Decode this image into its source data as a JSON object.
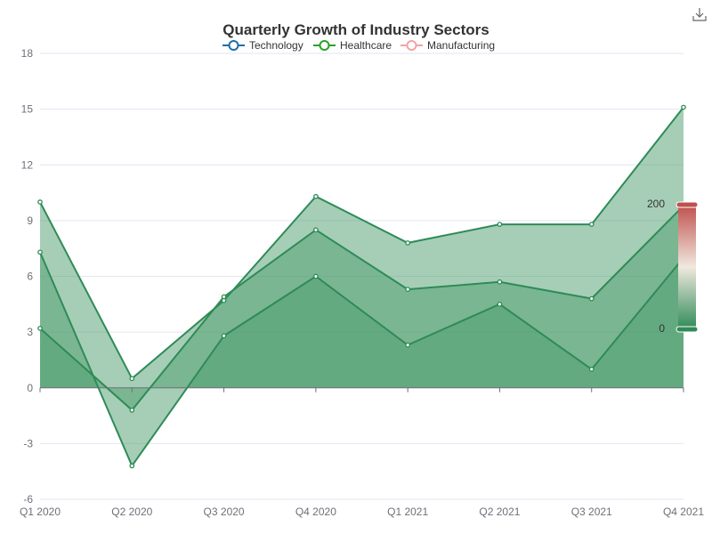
{
  "chart_data": {
    "type": "area",
    "title": "Quarterly Growth of Industry Sectors",
    "categories": [
      "Q1 2020",
      "Q2 2020",
      "Q3 2020",
      "Q4 2020",
      "Q1 2021",
      "Q2 2021",
      "Q3 2021",
      "Q4 2021"
    ],
    "series": [
      {
        "name": "Technology",
        "legend_color": "#1f6fa8",
        "values": [
          3.2,
          -1.2,
          4.9,
          8.5,
          5.3,
          5.7,
          4.8,
          9.8
        ]
      },
      {
        "name": "Healthcare",
        "legend_color": "#2ca02c",
        "values": [
          7.3,
          -4.2,
          2.8,
          6.0,
          2.3,
          4.5,
          1.0,
          7.0
        ]
      },
      {
        "name": "Manufacturing",
        "legend_color": "#f4a3a3",
        "values": [
          10.0,
          0.5,
          4.7,
          10.3,
          7.8,
          8.8,
          8.8,
          15.1
        ]
      }
    ],
    "ylim": [
      -6,
      18
    ],
    "yticks": [
      -6,
      -3,
      0,
      3,
      6,
      9,
      12,
      15,
      18
    ],
    "grid": true,
    "legend_position": "top-center",
    "area_color": "#4e9e6e",
    "line_color": "#2e8b57",
    "visual_map": {
      "max_label": "200",
      "min_label": "0",
      "colors": [
        "#2e8b57",
        "#f0e8de",
        "#c0504d"
      ]
    },
    "toolbox": {
      "icon": "download-icon"
    }
  }
}
